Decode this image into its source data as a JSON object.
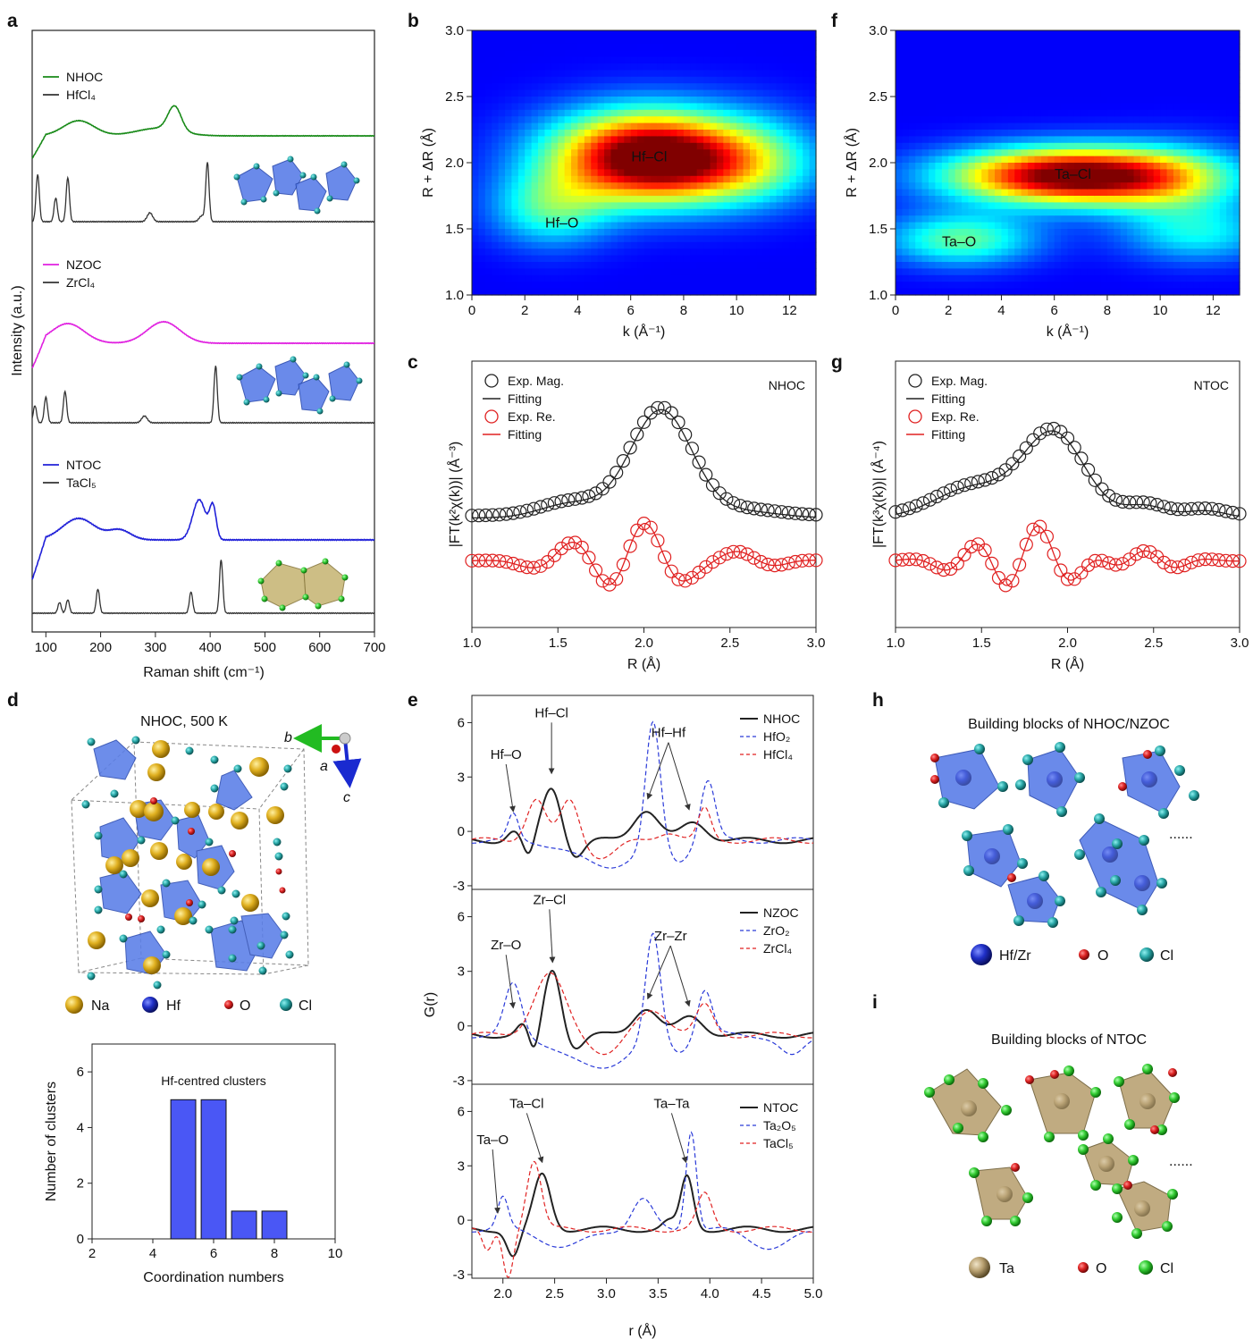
{
  "figure": {
    "panel_letters": [
      "a",
      "b",
      "c",
      "d",
      "e",
      "f",
      "g",
      "h",
      "i"
    ]
  },
  "chart_data": [
    {
      "id": "a",
      "type": "line",
      "xlabel": "Raman shift (cm⁻¹)",
      "ylabel": "Intensity (a.u.)",
      "xlim": [
        75,
        700
      ],
      "xticks": [
        100,
        200,
        300,
        400,
        500,
        600,
        700
      ],
      "groups": [
        {
          "legend": [
            {
              "name": "NHOC",
              "color": "#188a18"
            },
            {
              "name": "HfCl₄",
              "color": "#333333"
            }
          ],
          "series": [
            {
              "name": "NHOC",
              "color": "#188a18",
              "base": 0.0,
              "peaks": [
                [
                  160,
                  0.5,
                  28
                ],
                [
                  335,
                  0.8,
                  12
                ],
                [
                  305,
                  0.25,
                  40
                ]
              ]
            },
            {
              "name": "HfCl₄",
              "color": "#333333",
              "base": 0.0,
              "peaks": [
                [
                  85,
                  0.8,
                  3
                ],
                [
                  118,
                  0.4,
                  3
                ],
                [
                  140,
                  0.75,
                  3
                ],
                [
                  290,
                  0.15,
                  5
                ],
                [
                  395,
                  1.0,
                  3
                ],
                [
                  385,
                  0.1,
                  5
                ]
              ]
            }
          ]
        },
        {
          "legend": [
            {
              "name": "NZOC",
              "color": "#e020e0"
            },
            {
              "name": "ZrCl₄",
              "color": "#333333"
            }
          ],
          "series": [
            {
              "name": "NZOC",
              "color": "#e020e0",
              "base": 0.0,
              "peaks": [
                [
                  140,
                  0.55,
                  30
                ],
                [
                  315,
                  0.6,
                  30
                ]
              ]
            },
            {
              "name": "ZrCl₄",
              "color": "#333333",
              "base": 0.0,
              "peaks": [
                [
                  80,
                  0.3,
                  3
                ],
                [
                  100,
                  0.45,
                  3
                ],
                [
                  135,
                  0.55,
                  3
                ],
                [
                  280,
                  0.12,
                  5
                ],
                [
                  410,
                  1.0,
                  3
                ]
              ]
            }
          ]
        },
        {
          "legend": [
            {
              "name": "NTOC",
              "color": "#2020d8"
            },
            {
              "name": "TaCl₅",
              "color": "#333333"
            }
          ],
          "series": [
            {
              "name": "NTOC",
              "color": "#2020d8",
              "base": 0.0,
              "peaks": [
                [
                  160,
                  0.4,
                  30
                ],
                [
                  235,
                  0.18,
                  20
                ],
                [
                  380,
                  0.75,
                  12
                ],
                [
                  405,
                  0.6,
                  6
                ]
              ]
            },
            {
              "name": "TaCl₅",
              "color": "#333333",
              "base": 0.0,
              "peaks": [
                [
                  125,
                  0.2,
                  3
                ],
                [
                  140,
                  0.25,
                  3
                ],
                [
                  195,
                  0.45,
                  3
                ],
                [
                  365,
                  0.4,
                  3
                ],
                [
                  420,
                  1.0,
                  3
                ]
              ]
            }
          ]
        }
      ]
    },
    {
      "id": "b",
      "type": "heatmap",
      "xlabel": "k (Å⁻¹)",
      "ylabel": "R + ΔR (Å)",
      "xlim": [
        0,
        13
      ],
      "ylim": [
        1.0,
        3.0
      ],
      "xticks": [
        0,
        2,
        4,
        6,
        8,
        10,
        12
      ],
      "yticks": [
        1.0,
        1.5,
        2.0,
        2.5,
        3.0
      ],
      "labels": [
        {
          "text": "Hf–Cl",
          "k": 6.7,
          "r": 2.05
        },
        {
          "text": "Hf–O",
          "k": 3.4,
          "r": 1.55
        }
      ]
    },
    {
      "id": "f",
      "type": "heatmap",
      "xlabel": "k (Å⁻¹)",
      "ylabel": "R + ΔR (Å)",
      "xlim": [
        0,
        13
      ],
      "ylim": [
        1.0,
        3.0
      ],
      "xticks": [
        0,
        2,
        4,
        6,
        8,
        10,
        12
      ],
      "yticks": [
        1.0,
        1.5,
        2.0,
        2.5,
        3.0
      ],
      "labels": [
        {
          "text": "Ta–Cl",
          "k": 6.7,
          "r": 1.92
        },
        {
          "text": "Ta–O",
          "k": 2.4,
          "r": 1.41
        }
      ]
    },
    {
      "id": "c",
      "type": "line",
      "xlabel": "R (Å)",
      "ylabel": "|FT(k²χ(k))| (Å⁻³)",
      "xlim": [
        1.0,
        3.0
      ],
      "xticks": [
        1.0,
        1.5,
        2.0,
        2.5,
        3.0
      ],
      "tag": "NHOC",
      "tag_color": "#1a9a1a",
      "legend": [
        "Exp. Mag.",
        "Fitting",
        "Exp. Re.",
        "Fitting"
      ],
      "magnitude": {
        "base": 0.55,
        "peaks": [
          [
            1.58,
            0.12,
            0.18
          ],
          [
            2.1,
            0.9,
            0.18
          ],
          [
            2.6,
            0.05,
            0.2
          ]
        ]
      },
      "real": {
        "base": 0.0,
        "components": [
          [
            2.0,
            6.2,
            0.45
          ],
          [
            1.6,
            5.3,
            0.2
          ],
          [
            2.55,
            6.5,
            0.1
          ]
        ]
      }
    },
    {
      "id": "g",
      "type": "line",
      "xlabel": "R (Å)",
      "ylabel": "|FT(k³χ(k))| (Å⁻⁴)",
      "xlim": [
        1.0,
        3.0
      ],
      "xticks": [
        1.0,
        1.5,
        2.0,
        2.5,
        3.0
      ],
      "tag": "NTOC",
      "tag_color": "#2424d8",
      "legend": [
        "Exp. Mag.",
        "Fitting",
        "Exp. Re.",
        "Fitting"
      ],
      "magnitude": {
        "base": 0.55,
        "peaks": [
          [
            1.45,
            0.25,
            0.22
          ],
          [
            1.92,
            0.7,
            0.18
          ],
          [
            2.45,
            0.1,
            0.12
          ],
          [
            2.8,
            0.06,
            0.12
          ]
        ]
      },
      "real": {
        "base": 0.0,
        "components": [
          [
            1.82,
            7.0,
            0.42
          ],
          [
            1.5,
            7.0,
            0.2
          ],
          [
            2.45,
            8.0,
            0.12
          ]
        ]
      }
    },
    {
      "id": "e",
      "type": "line",
      "xlabel": "r (Å)",
      "ylabel": "G(r)",
      "xlim": [
        1.7,
        5.0
      ],
      "xticks": [
        2.0,
        2.5,
        3.0,
        3.5,
        4.0,
        4.5,
        5.0
      ],
      "ylim": [
        -3.2,
        7.5
      ],
      "yticks": [
        -3,
        0,
        3,
        6
      ],
      "subplots": [
        {
          "series": [
            {
              "name": "NHOC",
              "style": "solid",
              "color": "#222222",
              "peaks": [
                [
                  2.47,
                  2.9,
                  0.09
                ],
                [
                  3.38,
                  1.7,
                  0.12
                ],
                [
                  3.85,
                  1.0,
                  0.12
                ],
                [
                  2.1,
                  0.5,
                  0.06
                ],
                [
                  2.25,
                  -1.0,
                  0.05
                ],
                [
                  2.7,
                  -0.9,
                  0.08
                ]
              ]
            },
            {
              "name": "HfO₂",
              "style": "dashed",
              "color": "#2a3ad8",
              "peaks": [
                [
                  2.1,
                  1.4,
                  0.05
                ],
                [
                  3.45,
                  6.9,
                  0.07
                ],
                [
                  3.98,
                  3.3,
                  0.07
                ],
                [
                  3.0,
                  -1.4,
                  0.3
                ],
                [
                  3.7,
                  -1.0,
                  0.1
                ]
              ]
            },
            {
              "name": "HfCl₄",
              "style": "dashed",
              "color": "#e02222",
              "peaks": [
                [
                  2.32,
                  2.3,
                  0.09
                ],
                [
                  2.65,
                  2.3,
                  0.09
                ],
                [
                  3.6,
                  0.5,
                  0.1
                ],
                [
                  3.95,
                  1.7,
                  0.06
                ],
                [
                  2.95,
                  -0.9,
                  0.15
                ]
              ]
            }
          ],
          "annotations": [
            {
              "text": "Hf–O",
              "color": "#1a9a1a",
              "x": 2.03,
              "y": 4.0,
              "ax": 2.1,
              "ay": 0.9
            },
            {
              "text": "Hf–Cl",
              "color": "#1a9a1a",
              "x": 2.47,
              "y": 6.3,
              "ax": 2.47,
              "ay": 3.0
            },
            {
              "text": "Hf–Hf",
              "color": "#1a9a1a",
              "x": 3.6,
              "y": 5.2,
              "ax": 3.4,
              "ay": 1.6
            },
            {
              "text": "",
              "color": "#1a9a1a",
              "x": 3.6,
              "y": 5.2,
              "ax": 3.8,
              "ay": 1.0
            }
          ]
        },
        {
          "series": [
            {
              "name": "NZOC",
              "style": "solid",
              "color": "#222222",
              "peaks": [
                [
                  2.48,
                  3.6,
                  0.08
                ],
                [
                  3.38,
                  1.5,
                  0.12
                ],
                [
                  3.82,
                  1.0,
                  0.12
                ],
                [
                  2.2,
                  0.6,
                  0.06
                ],
                [
                  2.3,
                  -1.2,
                  0.05
                ],
                [
                  2.7,
                  -0.7,
                  0.08
                ]
              ]
            },
            {
              "name": "ZrO₂",
              "style": "dashed",
              "color": "#2a3ad8",
              "peaks": [
                [
                  2.1,
                  2.8,
                  0.08
                ],
                [
                  3.45,
                  5.8,
                  0.07
                ],
                [
                  3.95,
                  2.5,
                  0.07
                ],
                [
                  2.9,
                  -1.8,
                  0.3
                ],
                [
                  3.7,
                  -0.8,
                  0.1
                ],
                [
                  4.8,
                  -1.2,
                  0.12
                ]
              ]
            },
            {
              "name": "ZrCl₄",
              "style": "dashed",
              "color": "#e02222",
              "peaks": [
                [
                  2.45,
                  3.3,
                  0.15
                ],
                [
                  3.45,
                  1.4,
                  0.15
                ],
                [
                  3.95,
                  1.6,
                  0.08
                ],
                [
                  3.0,
                  -1.0,
                  0.15
                ]
              ]
            }
          ],
          "annotations": [
            {
              "text": "Zr–O",
              "color": "#e020e0",
              "x": 2.03,
              "y": 4.2,
              "ax": 2.1,
              "ay": 0.8
            },
            {
              "text": "Zr–Cl",
              "color": "#e020e0",
              "x": 2.45,
              "y": 6.7,
              "ax": 2.48,
              "ay": 3.3
            },
            {
              "text": "Zr–Zr",
              "color": "#e020e0",
              "x": 3.62,
              "y": 4.7,
              "ax": 3.4,
              "ay": 1.3
            },
            {
              "text": "",
              "color": "#e020e0",
              "x": 3.62,
              "y": 4.7,
              "ax": 3.8,
              "ay": 0.9
            }
          ]
        },
        {
          "series": [
            {
              "name": "NTOC",
              "style": "solid",
              "color": "#222222",
              "peaks": [
                [
                  2.38,
                  3.0,
                  0.08
                ],
                [
                  3.78,
                  2.9,
                  0.06
                ],
                [
                  2.1,
                  -1.5,
                  0.06
                ],
                [
                  3.6,
                  0.4,
                  0.06
                ]
              ]
            },
            {
              "name": "Ta₂O₅",
              "style": "dashed",
              "color": "#2a3ad8",
              "peaks": [
                [
                  2.0,
                  1.7,
                  0.05
                ],
                [
                  3.35,
                  1.6,
                  0.1
                ],
                [
                  3.82,
                  5.5,
                  0.05
                ],
                [
                  2.6,
                  -1.0,
                  0.2
                ],
                [
                  4.6,
                  -1.0,
                  0.2
                ]
              ]
            },
            {
              "name": "TaCl₅",
              "style": "dashed",
              "color": "#e02222",
              "peaks": [
                [
                  2.3,
                  3.8,
                  0.07
                ],
                [
                  3.95,
                  1.9,
                  0.07
                ],
                [
                  2.05,
                  -2.6,
                  0.05
                ],
                [
                  1.85,
                  -1.3,
                  0.05
                ]
              ]
            }
          ],
          "annotations": [
            {
              "text": "Ta–O",
              "color": "#2424d8",
              "x": 1.9,
              "y": 4.2,
              "ax": 1.95,
              "ay": 0.2
            },
            {
              "text": "Ta–Cl",
              "color": "#2424d8",
              "x": 2.23,
              "y": 6.2,
              "ax": 2.38,
              "ay": 3.0
            },
            {
              "text": "Ta–Ta",
              "color": "#2424d8",
              "x": 3.63,
              "y": 6.2,
              "ax": 3.77,
              "ay": 3.0
            }
          ]
        }
      ]
    },
    {
      "id": "d-bar",
      "type": "bar",
      "title": "Hf-centred clusters",
      "xlabel": "Coordination numbers",
      "ylabel": "Number of clusters",
      "x": [
        5,
        6,
        7,
        8
      ],
      "values": [
        5,
        5,
        1,
        1
      ],
      "xlim": [
        2,
        10
      ],
      "ylim": [
        0,
        7
      ],
      "xticks": [
        2,
        4,
        6,
        8,
        10
      ],
      "yticks": [
        0,
        2,
        4,
        6
      ],
      "color": "#4a57f5"
    }
  ],
  "structure_d": {
    "title": "NHOC, 500 K",
    "axes": {
      "b": "b",
      "a": "a",
      "c": "c"
    },
    "legend": [
      {
        "name": "Na",
        "color": "#e0b020"
      },
      {
        "name": "Hf",
        "color": "#2030c8"
      },
      {
        "name": "O",
        "color": "#dd2222"
      },
      {
        "name": "Cl",
        "color": "#2aa8a8"
      }
    ]
  },
  "structure_h": {
    "title": "Building blocks of NHOC/NZOC",
    "ellipsis": "......",
    "legend": [
      {
        "name": "Hf/Zr",
        "color": "#2030c8"
      },
      {
        "name": "O",
        "color": "#dd2222"
      },
      {
        "name": "Cl",
        "color": "#2aa8a8"
      }
    ]
  },
  "structure_i": {
    "title": "Building blocks of NTOC",
    "ellipsis": "......",
    "legend": [
      {
        "name": "Ta",
        "color": "#b8a070"
      },
      {
        "name": "O",
        "color": "#dd2222"
      },
      {
        "name": "Cl",
        "color": "#33cc33"
      }
    ]
  }
}
